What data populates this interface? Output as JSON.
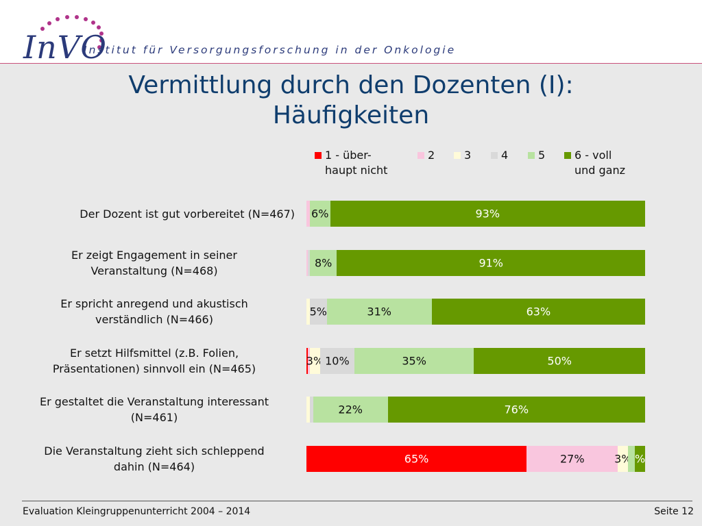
{
  "header": {
    "logo_text": "InVO",
    "tagline": "Institut für Versorgungsforschung in der Onkologie"
  },
  "slide_title_line1": "Vermittlung durch den Dozenten (I):",
  "slide_title_line2": "Häufigkeiten",
  "footer": {
    "left": "Evaluation Kleingruppenunterricht 2004 – 2014",
    "right": "Seite 12"
  },
  "chart_data": {
    "type": "bar",
    "orientation": "horizontal",
    "stacked": true,
    "xlim": [
      0,
      100
    ],
    "legend_position": "top",
    "legend": [
      {
        "label_line1": "1 - über-",
        "label_line2": "haupt nicht",
        "color": "#ff0000"
      },
      {
        "label_line1": "2",
        "label_line2": "",
        "color": "#f9c6de"
      },
      {
        "label_line1": "3",
        "label_line2": "",
        "color": "#fffbd9"
      },
      {
        "label_line1": "4",
        "label_line2": "",
        "color": "#d9d9d9"
      },
      {
        "label_line1": "5",
        "label_line2": "",
        "color": "#b8e2a0"
      },
      {
        "label_line1": "6 - voll",
        "label_line2": "und ganz",
        "color": "#669900"
      }
    ],
    "categories": [
      {
        "line1": "Der Dozent ist gut vorbereitet (N=467)",
        "line2": ""
      },
      {
        "line1": "Er zeigt Engagement in seiner",
        "line2": "Veranstaltung (N=468)"
      },
      {
        "line1": "Er spricht anregend und akustisch",
        "line2": "verständlich (N=466)"
      },
      {
        "line1": "Er setzt Hilfsmittel (z.B. Folien,",
        "line2": "Präsentationen) sinnvoll ein (N=465)"
      },
      {
        "line1": "Er gestaltet die Veranstaltung interessant",
        "line2": "(N=461)"
      },
      {
        "line1": "Die Veranstaltung zieht sich schleppend",
        "line2": "dahin (N=464)"
      }
    ],
    "rows": [
      {
        "values": [
          0,
          1,
          0,
          0,
          6,
          93
        ],
        "labels": [
          "",
          "",
          "",
          "",
          "6%",
          "93%"
        ]
      },
      {
        "values": [
          0,
          0.5,
          0,
          0.5,
          8,
          91
        ],
        "labels": [
          "",
          "",
          "",
          "",
          "8%",
          "91%"
        ]
      },
      {
        "values": [
          0,
          0,
          1,
          5,
          31,
          63
        ],
        "labels": [
          "",
          "",
          "",
          "5%",
          "31%",
          "63%"
        ]
      },
      {
        "values": [
          0.5,
          0.5,
          3,
          10,
          35,
          50
        ],
        "labels": [
          "",
          "",
          "3%",
          "10%",
          "35%",
          "50%"
        ]
      },
      {
        "values": [
          0,
          0,
          1,
          1,
          22,
          76
        ],
        "labels": [
          "",
          "",
          "",
          "",
          "22%",
          "76%"
        ]
      },
      {
        "values": [
          65,
          27,
          3,
          0,
          2,
          3
        ],
        "labels": [
          "65%",
          "27%",
          "3%",
          "",
          "",
          "%"
        ]
      }
    ],
    "label_colors": [
      "#ffffff",
      "#111111",
      "#111111",
      "#111111",
      "#111111",
      "#ffffff"
    ]
  }
}
